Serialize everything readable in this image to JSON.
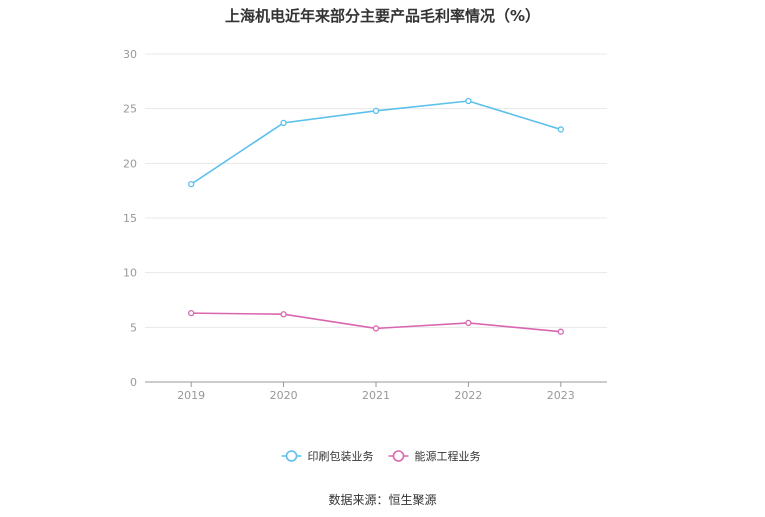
{
  "chart_data": {
    "type": "line",
    "title": "上海机电近年来部分主要产品毛利率情况（%）",
    "categories": [
      "2019",
      "2020",
      "2021",
      "2022",
      "2023"
    ],
    "ylim": [
      0,
      30
    ],
    "yticks": [
      0,
      5,
      10,
      15,
      20,
      25,
      30
    ],
    "grid": true,
    "legend_position": "bottom",
    "series": [
      {
        "name": "印刷包装业务",
        "color": "#5bc0eb",
        "values": [
          18.1,
          23.7,
          24.8,
          25.7,
          23.1
        ]
      },
      {
        "name": "能源工程业务",
        "color": "#d966b0",
        "values": [
          6.3,
          6.2,
          4.9,
          5.4,
          4.6
        ]
      }
    ],
    "source": "数据来源：恒生聚源"
  }
}
